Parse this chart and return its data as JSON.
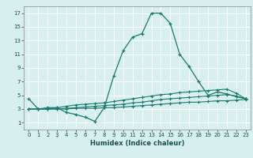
{
  "xlabel": "Humidex (Indice chaleur)",
  "background_color": "#d7efee",
  "grid_color": "#ffffff",
  "line_color": "#1a7a6e",
  "xlim": [
    -0.5,
    23.5
  ],
  "ylim": [
    0,
    18
  ],
  "xticks": [
    0,
    1,
    2,
    3,
    4,
    5,
    6,
    7,
    8,
    9,
    10,
    11,
    12,
    13,
    14,
    15,
    16,
    17,
    18,
    19,
    20,
    21,
    22,
    23
  ],
  "yticks": [
    1,
    3,
    5,
    7,
    9,
    11,
    13,
    15,
    17
  ],
  "line1_x": [
    0,
    1,
    2,
    3,
    4,
    5,
    6,
    7,
    8,
    9,
    10,
    11,
    12,
    13,
    14,
    15,
    16,
    17,
    18,
    19,
    20,
    21,
    22,
    23
  ],
  "line1_y": [
    4.5,
    3.0,
    3.2,
    3.2,
    2.5,
    2.2,
    1.8,
    1.2,
    3.2,
    7.8,
    11.5,
    13.5,
    14.0,
    17.0,
    17.0,
    15.5,
    11.0,
    9.2,
    7.0,
    5.0,
    5.5,
    5.2,
    4.8,
    4.5
  ],
  "line2_x": [
    0,
    1,
    2,
    3,
    4,
    5,
    6,
    7,
    8,
    9,
    10,
    11,
    12,
    13,
    14,
    15,
    16,
    17,
    18,
    19,
    20,
    21,
    22,
    23
  ],
  "line2_y": [
    3.0,
    3.0,
    3.0,
    3.2,
    3.4,
    3.6,
    3.7,
    3.8,
    3.9,
    4.1,
    4.3,
    4.5,
    4.7,
    4.9,
    5.1,
    5.2,
    5.4,
    5.5,
    5.6,
    5.7,
    5.8,
    5.9,
    5.3,
    4.5
  ],
  "line3_x": [
    0,
    1,
    2,
    3,
    4,
    5,
    6,
    7,
    8,
    9,
    10,
    11,
    12,
    13,
    14,
    15,
    16,
    17,
    18,
    19,
    20,
    21,
    22,
    23
  ],
  "line3_y": [
    3.0,
    3.0,
    3.0,
    3.0,
    3.0,
    3.1,
    3.1,
    3.1,
    3.2,
    3.2,
    3.3,
    3.4,
    3.5,
    3.6,
    3.7,
    3.8,
    3.9,
    4.0,
    4.0,
    4.1,
    4.2,
    4.2,
    4.3,
    4.4
  ],
  "line4_x": [
    0,
    1,
    2,
    3,
    4,
    5,
    6,
    7,
    8,
    9,
    10,
    11,
    12,
    13,
    14,
    15,
    16,
    17,
    18,
    19,
    20,
    21,
    22,
    23
  ],
  "line4_y": [
    3.0,
    3.0,
    3.0,
    3.0,
    3.1,
    3.2,
    3.3,
    3.4,
    3.5,
    3.6,
    3.7,
    3.9,
    4.0,
    4.2,
    4.4,
    4.5,
    4.6,
    4.7,
    4.8,
    4.9,
    5.0,
    5.1,
    4.9,
    4.5
  ],
  "xlabel_fontsize": 6.0,
  "tick_fontsize": 5.0
}
